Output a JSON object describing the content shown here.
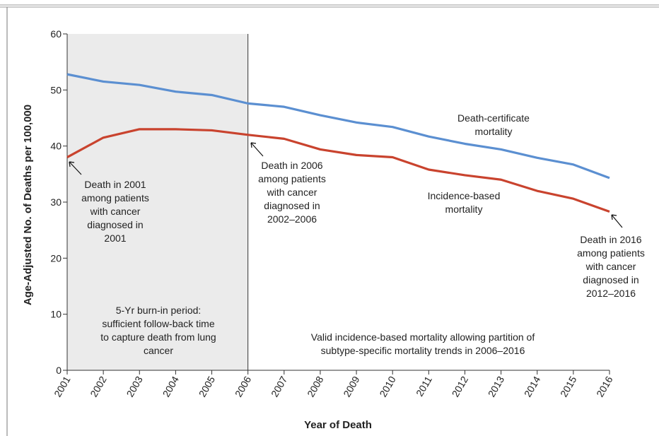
{
  "chart_data": {
    "type": "line",
    "y_label": "Age-Adjusted No. of Deaths per 100,000",
    "x_label": "Year of Death",
    "x": [
      2001,
      2002,
      2003,
      2004,
      2005,
      2006,
      2007,
      2008,
      2009,
      2010,
      2011,
      2012,
      2013,
      2014,
      2015,
      2016
    ],
    "xlim": [
      2001,
      2016
    ],
    "xticks": [
      2001,
      2002,
      2003,
      2004,
      2005,
      2006,
      2007,
      2008,
      2009,
      2010,
      2011,
      2012,
      2013,
      2014,
      2015,
      2016
    ],
    "ylim": [
      0,
      60
    ],
    "yticks": [
      0,
      10,
      20,
      30,
      40,
      50,
      60
    ],
    "shaded_range": [
      2001,
      2006
    ],
    "series": [
      {
        "name": "Death-certificate mortality",
        "color": "#5b8fd1",
        "values": [
          52.8,
          51.5,
          50.9,
          49.7,
          49.1,
          47.6,
          47.0,
          45.5,
          44.2,
          43.4,
          41.7,
          40.4,
          39.4,
          37.9,
          36.7,
          34.3
        ]
      },
      {
        "name": "Incidence-based mortality",
        "color": "#c9432e",
        "values": [
          38.0,
          41.5,
          43.0,
          43.0,
          42.8,
          42.0,
          41.3,
          39.4,
          38.4,
          38.0,
          35.8,
          34.8,
          34.0,
          32.0,
          30.6,
          28.3
        ]
      }
    ],
    "annotations": [
      "Death in 2001 among patients with cancer diagnosed in 2001",
      "Death in 2006 among patients with cancer diagnosed in 2002–2006",
      "Death in 2016 among patients with cancer diagnosed in 2012–2016",
      "5-Yr burn-in period: sufficient follow-back time to capture death from lung cancer",
      "Valid incidence-based mortality allowing partition of subtype-specific mortality trends in 2006–2016"
    ]
  }
}
